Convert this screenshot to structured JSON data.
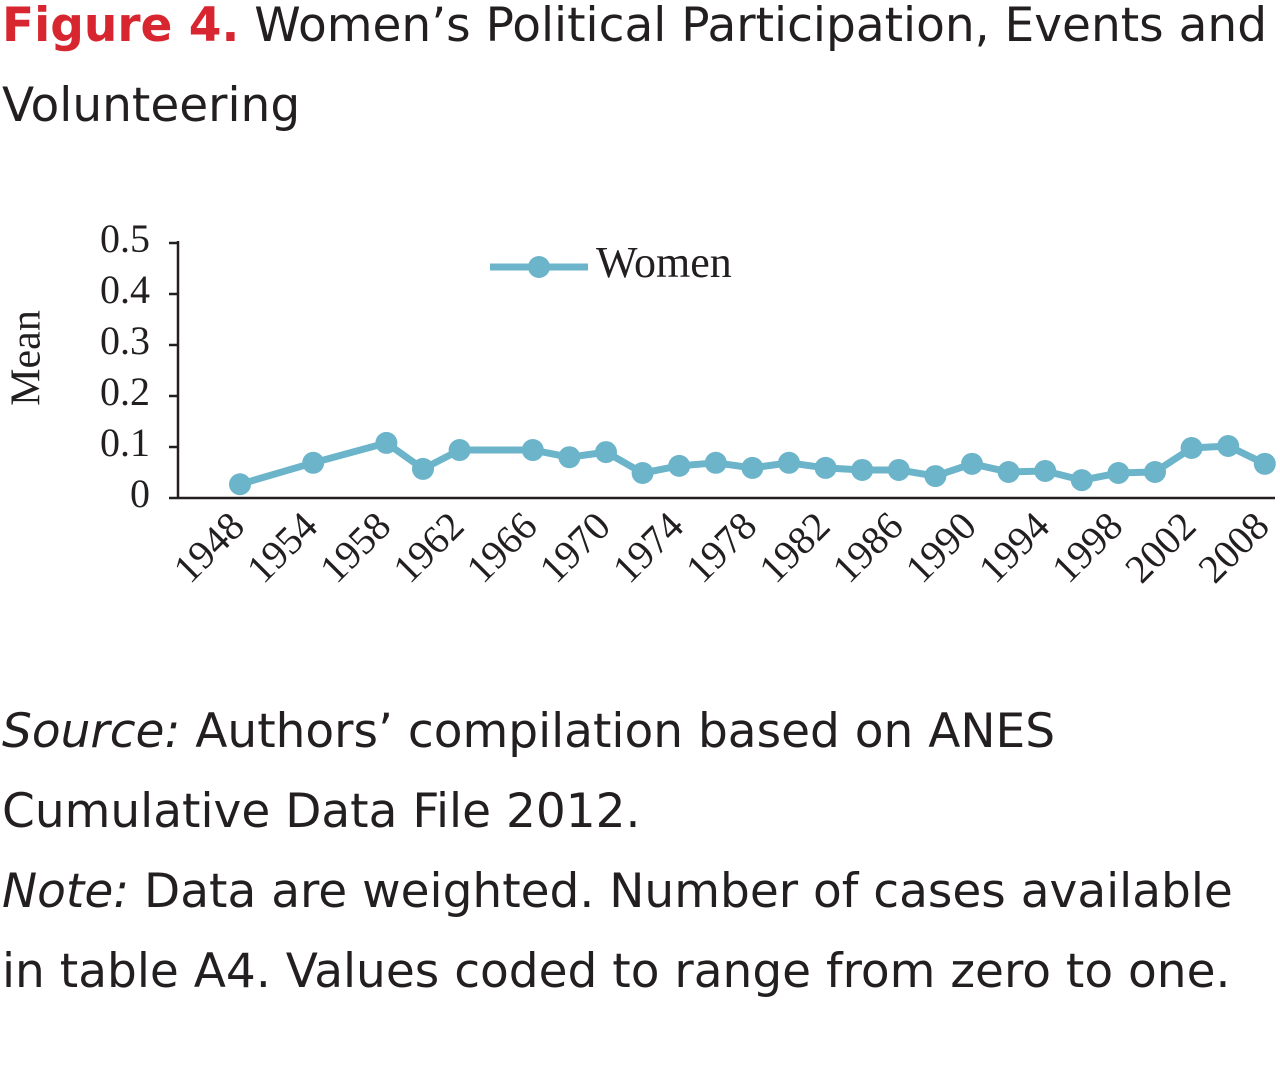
{
  "figure_label": "Figure 4.",
  "chart_data": {
    "type": "line",
    "title": "Women’s Political Participation, Events and Volunteering",
    "y_label": "Mean",
    "categories": [
      "1948",
      null,
      "1954",
      null,
      "1958",
      null,
      "1962",
      null,
      "1966",
      null,
      "1970",
      null,
      "1974",
      null,
      "1978",
      null,
      "1982",
      null,
      "1986",
      null,
      "1990",
      null,
      "1994",
      null,
      "1998",
      null,
      "2002",
      null,
      "2008"
    ],
    "series": [
      {
        "name": "Women",
        "color": "#6cb4ca",
        "values": [
          0.027,
          null,
          0.069,
          null,
          0.108,
          0.057,
          0.094,
          null,
          0.094,
          0.08,
          0.09,
          0.049,
          0.063,
          0.069,
          0.059,
          0.069,
          0.059,
          0.055,
          0.055,
          0.043,
          0.067,
          0.051,
          0.053,
          0.035,
          0.049,
          0.051,
          0.098,
          0.102,
          0.067
        ]
      }
    ],
    "connect_gaps": true,
    "ylim": [
      0,
      0.5
    ],
    "yticks": [
      0,
      0.1,
      0.2,
      0.3,
      0.4,
      0.5
    ],
    "legend": "top"
  },
  "source_label": "Source:",
  "source": "Authors’ compilation based on ANES Cumulative Data File 2012.",
  "note_label": "Note:",
  "note": "Data are weighted. Number of cases available in table A4. Values coded to range from zero to one."
}
